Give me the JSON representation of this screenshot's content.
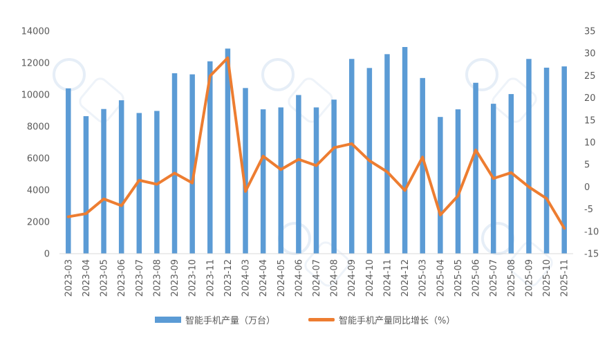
{
  "chart_data": {
    "type": "bar",
    "categories": [
      "2023-03",
      "2023-04",
      "2023-05",
      "2023-06",
      "2023-07",
      "2023-08",
      "2023-09",
      "2023-10",
      "2023-11",
      "2023-12",
      "2024-03",
      "2024-04",
      "2024-05",
      "2024-06",
      "2024-07",
      "2024-08",
      "2024-09",
      "2024-10",
      "2024-11",
      "2024-12",
      "2025-03",
      "2025-04",
      "2025-05",
      "2025-06",
      "2025-07",
      "2025-08",
      "2025-09",
      "2025-10",
      "2025-11"
    ],
    "series": [
      {
        "name": "智能手机产量（万台）",
        "type": "bar",
        "axis": "left",
        "color": "#5B9BD5",
        "values": [
          10400,
          8650,
          9100,
          9650,
          8850,
          8980,
          11350,
          11280,
          12100,
          12900,
          10420,
          9080,
          9200,
          9980,
          9200,
          9690,
          12250,
          11680,
          12550,
          13000,
          11050,
          8600,
          9080,
          10750,
          9430,
          10040,
          12250,
          11700,
          11780
        ]
      },
      {
        "name": "智能手机产量同比增长（%）",
        "type": "line",
        "axis": "right",
        "color": "#ED7D31",
        "values": [
          -6.7,
          -6.0,
          -2.7,
          -4.2,
          1.5,
          0.6,
          3.1,
          0.9,
          24.9,
          29.0,
          -1.0,
          6.9,
          3.9,
          6.2,
          4.8,
          8.8,
          9.7,
          5.9,
          3.4,
          -0.8,
          6.7,
          -6.3,
          -2.0,
          8.3,
          1.9,
          3.2,
          0.0,
          -2.6,
          -9.3
        ]
      }
    ],
    "title": "",
    "xlabel": "",
    "ylabel": "",
    "ylim": [
      0,
      14000
    ],
    "y_ticks": [
      "0",
      "2000",
      "4000",
      "6000",
      "8000",
      "10000",
      "12000",
      "14000"
    ],
    "y2lim": [
      -15,
      35
    ],
    "y2_ticks": [
      "-15",
      "-10",
      "-5",
      "0",
      "5",
      "10",
      "15",
      "20",
      "25",
      "30",
      "35"
    ],
    "grid": false,
    "legend_position": "bottom"
  },
  "legend": {
    "bar_label": "智能手机产量（万台）",
    "line_label": "智能手机产量同比增长（%）"
  }
}
